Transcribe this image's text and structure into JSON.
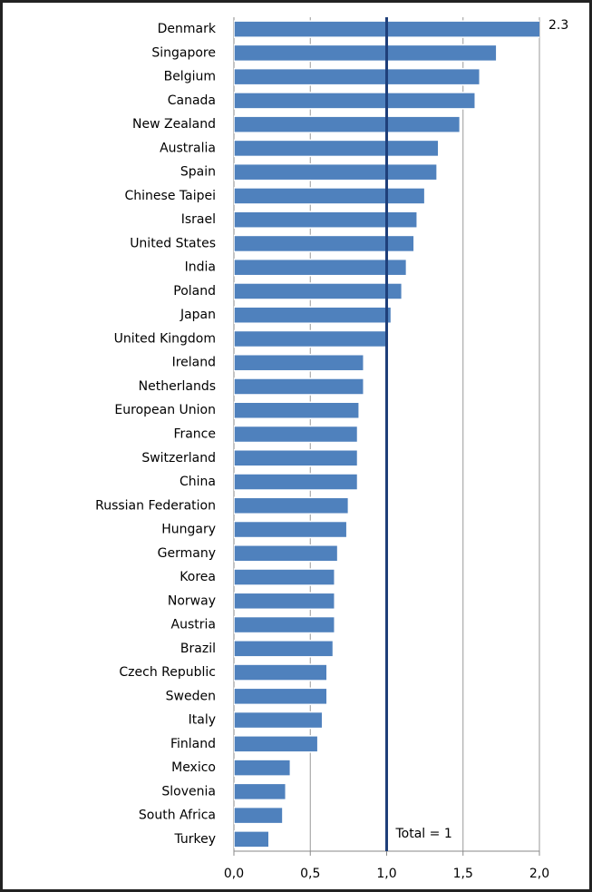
{
  "chart_data": {
    "type": "barh",
    "categories": [
      "Denmark",
      "Singapore",
      "Belgium",
      "Canada",
      "New Zealand",
      "Australia",
      "Spain",
      "Chinese Taipei",
      "Israel",
      "United States",
      "India",
      "Poland",
      "Japan",
      "United Kingdom",
      "Ireland",
      "Netherlands",
      "European Union",
      "France",
      "Switzerland",
      "China",
      "Russian Federation",
      "Hungary",
      "Germany",
      "Korea",
      "Norway",
      "Austria",
      "Brazil",
      "Czech Republic",
      "Sweden",
      "Italy",
      "Finland",
      "Mexico",
      "Slovenia",
      "South Africa",
      "Turkey"
    ],
    "values": [
      2.3,
      1.72,
      1.61,
      1.58,
      1.48,
      1.34,
      1.33,
      1.25,
      1.2,
      1.18,
      1.13,
      1.1,
      1.03,
      1.0,
      0.85,
      0.85,
      0.82,
      0.81,
      0.81,
      0.81,
      0.75,
      0.74,
      0.68,
      0.66,
      0.66,
      0.66,
      0.65,
      0.61,
      0.61,
      0.58,
      0.55,
      0.37,
      0.34,
      0.32,
      0.23
    ],
    "value_labels": [
      "2.3",
      null,
      null,
      null,
      null,
      null,
      null,
      null,
      null,
      null,
      null,
      null,
      null,
      null,
      null,
      null,
      null,
      null,
      null,
      null,
      null,
      null,
      null,
      null,
      null,
      null,
      null,
      null,
      null,
      null,
      null,
      null,
      null,
      null,
      null
    ],
    "color": "#4f81bd",
    "xlim": [
      0,
      2
    ],
    "xticks": [
      {
        "value": 0,
        "label": "0,0"
      },
      {
        "value": 0.5,
        "label": "0,5"
      },
      {
        "value": 1,
        "label": "1,0"
      },
      {
        "value": 1.5,
        "label": "1,5"
      },
      {
        "value": 2,
        "label": "2,0"
      }
    ],
    "grid": true,
    "reference_line": {
      "value": 1,
      "label": "Total = 1",
      "color": "#1f3f7a"
    }
  }
}
